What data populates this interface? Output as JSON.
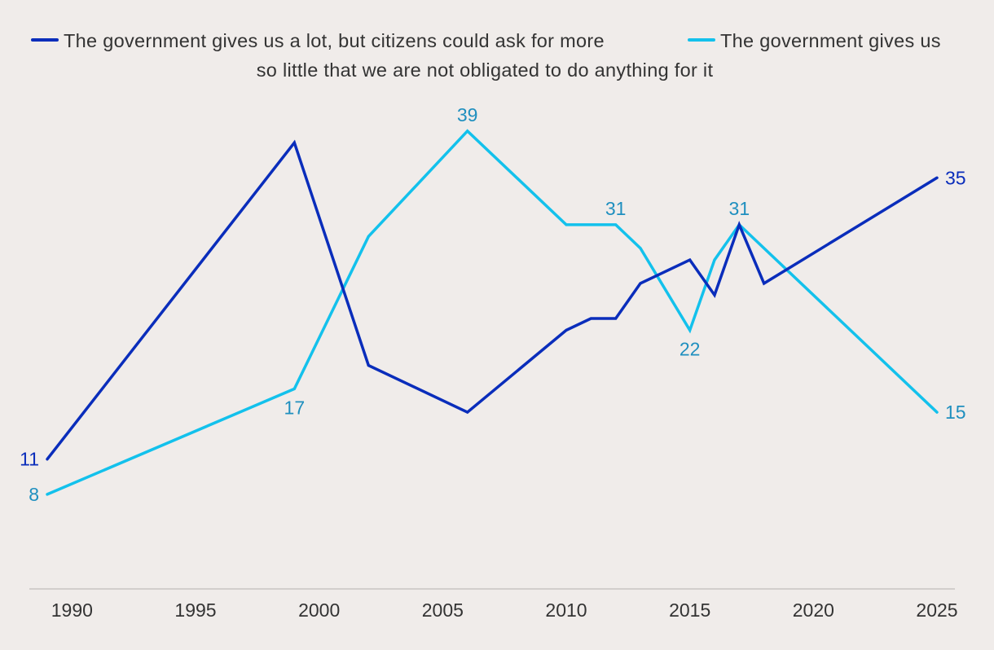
{
  "chart_data": {
    "type": "line",
    "title": "",
    "xlabel": "",
    "ylabel": "",
    "xlim": [
      1989,
      2025
    ],
    "ylim": [
      0,
      41
    ],
    "grid": false,
    "legend_position": "top",
    "x_ticks": [
      "1990",
      "1995",
      "2000",
      "2005",
      "2010",
      "2015",
      "2020",
      "2025"
    ],
    "series": [
      {
        "name": "The government gives us a lot, but citizens could ask for more",
        "color": "#0a2dbb",
        "x": [
          1989,
          1999,
          2002,
          2006,
          2010,
          2011,
          2012,
          2013,
          2015,
          2016,
          2017,
          2018,
          2025
        ],
        "values": [
          11,
          38,
          19,
          15,
          22,
          23,
          23,
          26,
          28,
          25,
          31,
          26,
          35
        ]
      },
      {
        "name": "The government gives us so little that we are not obligated to do anything for it",
        "color": "#13c1ec",
        "x": [
          1989,
          1999,
          2002,
          2006,
          2010,
          2011,
          2012,
          2013,
          2015,
          2016,
          2017,
          2025
        ],
        "values": [
          8,
          17,
          30,
          39,
          31,
          31,
          31,
          29,
          22,
          28,
          31,
          15
        ]
      }
    ],
    "data_labels": [
      {
        "text": "11",
        "series": 0,
        "x": 1989,
        "value": 11,
        "color": "#0a2dbb",
        "pos": "left"
      },
      {
        "text": "35",
        "series": 0,
        "x": 2025,
        "value": 35,
        "color": "#0a2dbb",
        "pos": "right"
      },
      {
        "text": "8",
        "series": 1,
        "x": 1989,
        "value": 8,
        "color": "#1f8fbf",
        "pos": "left"
      },
      {
        "text": "17",
        "series": 1,
        "x": 1999,
        "value": 17,
        "color": "#1f8fbf",
        "pos": "below"
      },
      {
        "text": "39",
        "series": 1,
        "x": 2006,
        "value": 39,
        "color": "#1f8fbf",
        "pos": "above"
      },
      {
        "text": "31",
        "series": 1,
        "x": 2012,
        "value": 31,
        "color": "#1f8fbf",
        "pos": "above"
      },
      {
        "text": "22",
        "series": 1,
        "x": 2015,
        "value": 22,
        "color": "#1f8fbf",
        "pos": "below"
      },
      {
        "text": "31",
        "series": 1,
        "x": 2017,
        "value": 31,
        "color": "#1f8fbf",
        "pos": "above"
      },
      {
        "text": "15",
        "series": 1,
        "x": 2025,
        "value": 15,
        "color": "#1f8fbf",
        "pos": "right"
      }
    ]
  },
  "legend": {
    "item1": "The government gives us a lot, but citizens could ask for more",
    "item2_line1": "The government gives us",
    "item2_line2": "so little that we are not obligated to do anything for it"
  }
}
